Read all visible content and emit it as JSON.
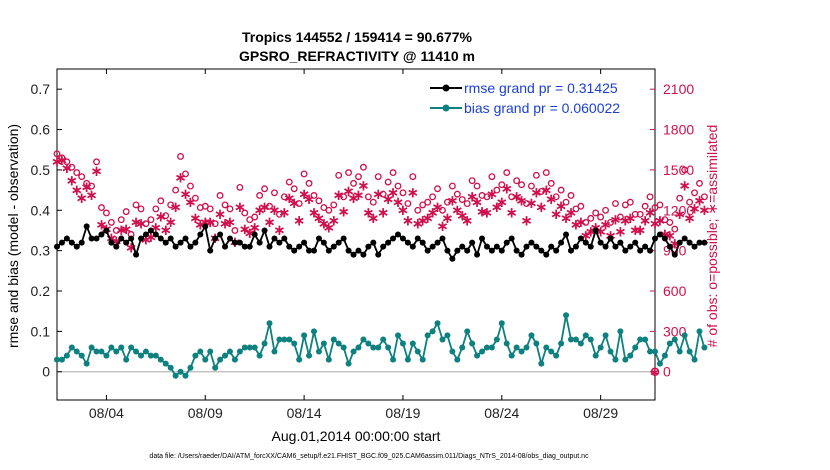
{
  "chart_data": {
    "type": "line",
    "title": "Tropics 144552 / 159414 = 90.677%",
    "subtitle": "GPSRO_REFRACTIVITY @ 11410 m",
    "xlabel": "Aug.01,2014 00:00:00 start",
    "ylabel": "rmse and bias (model - observation)",
    "y2label": "# of obs: o=possible; ∗=assimilated",
    "x_tick_labels": [
      "08/04",
      "08/09",
      "08/14",
      "08/19",
      "08/24",
      "08/29"
    ],
    "x_tick_days": [
      4,
      9,
      14,
      19,
      24,
      29
    ],
    "xlim": [
      1.5,
      31.75
    ],
    "ylim": [
      -0.07,
      0.75
    ],
    "y_ticks": [
      0,
      0.1,
      0.2,
      0.3,
      0.4,
      0.5,
      0.6,
      0.7
    ],
    "y_tick_labels": [
      "0",
      "0.1",
      "0.2",
      "0.3",
      "0.4",
      "0.5",
      "0.6",
      "0.7"
    ],
    "y2lim": [
      -210,
      2250
    ],
    "y2_ticks": [
      0,
      300,
      600,
      900,
      1200,
      1500,
      1800,
      2100
    ],
    "y2_tick_labels": [
      "0",
      "300",
      "600",
      "900",
      "1200",
      "1500",
      "1800",
      "2100"
    ],
    "x_start": 1.5,
    "x_step": 0.25,
    "series": [
      {
        "name": "rmse",
        "legend": "rmse grand pr = 0.31425",
        "color": "#000000",
        "marker": "circle",
        "values": [
          0.31,
          0.32,
          0.33,
          0.32,
          0.31,
          0.32,
          0.36,
          0.33,
          0.33,
          0.34,
          0.35,
          0.32,
          0.31,
          0.33,
          0.32,
          0.33,
          0.29,
          0.33,
          0.34,
          0.35,
          0.34,
          0.33,
          0.32,
          0.33,
          0.31,
          0.32,
          0.33,
          0.31,
          0.32,
          0.34,
          0.36,
          0.3,
          0.33,
          0.34,
          0.31,
          0.33,
          0.32,
          0.32,
          0.31,
          0.31,
          0.34,
          0.32,
          0.35,
          0.31,
          0.33,
          0.32,
          0.33,
          0.31,
          0.3,
          0.31,
          0.32,
          0.3,
          0.3,
          0.33,
          0.32,
          0.3,
          0.31,
          0.32,
          0.33,
          0.3,
          0.29,
          0.3,
          0.29,
          0.31,
          0.32,
          0.29,
          0.31,
          0.32,
          0.33,
          0.34,
          0.33,
          0.32,
          0.31,
          0.33,
          0.32,
          0.3,
          0.31,
          0.32,
          0.33,
          0.3,
          0.28,
          0.3,
          0.31,
          0.3,
          0.32,
          0.29,
          0.33,
          0.31,
          0.3,
          0.31,
          0.3,
          0.32,
          0.33,
          0.3,
          0.29,
          0.31,
          0.32,
          0.31,
          0.3,
          0.29,
          0.31,
          0.3,
          0.32,
          0.34,
          0.3,
          0.31,
          0.33,
          0.32,
          0.31,
          0.35,
          0.32,
          0.31,
          0.33,
          0.31,
          0.32,
          0.3,
          0.31,
          0.32,
          0.3,
          0.31,
          0.3,
          0.33,
          0.34,
          0.33,
          0.31,
          0.29,
          0.32,
          0.33,
          0.32,
          0.31,
          0.32,
          0.32
        ]
      },
      {
        "name": "bias",
        "legend": "bias grand pr = 0.060022",
        "color": "#0d8080",
        "marker": "circle",
        "values": [
          0.03,
          0.03,
          0.04,
          0.06,
          0.05,
          0.04,
          0.02,
          0.06,
          0.05,
          0.05,
          0.04,
          0.06,
          0.05,
          0.06,
          0.03,
          0.06,
          0.05,
          0.04,
          0.05,
          0.04,
          0.04,
          0.03,
          0.02,
          0.01,
          -0.01,
          0.0,
          -0.01,
          0.01,
          0.04,
          0.05,
          0.03,
          0.05,
          0.01,
          0.03,
          0.04,
          0.05,
          0.03,
          0.05,
          0.06,
          0.06,
          0.06,
          0.04,
          0.07,
          0.12,
          0.05,
          0.08,
          0.08,
          0.08,
          0.07,
          0.03,
          0.09,
          0.04,
          0.1,
          0.05,
          0.07,
          0.03,
          0.08,
          0.07,
          0.06,
          0.02,
          0.05,
          0.06,
          0.08,
          0.07,
          0.06,
          0.06,
          0.08,
          0.06,
          0.03,
          0.09,
          0.07,
          0.03,
          0.07,
          0.05,
          0.03,
          0.09,
          0.1,
          0.12,
          0.08,
          0.09,
          0.05,
          0.03,
          0.06,
          0.1,
          0.07,
          0.04,
          0.05,
          0.06,
          0.06,
          0.08,
          0.12,
          0.07,
          0.04,
          0.06,
          0.05,
          0.06,
          0.09,
          0.07,
          0.02,
          0.06,
          0.05,
          0.04,
          0.07,
          0.14,
          0.08,
          0.08,
          0.07,
          0.09,
          0.08,
          0.04,
          0.06,
          0.09,
          0.05,
          0.03,
          0.1,
          0.03,
          0.04,
          0.06,
          0.08,
          0.08,
          0.05,
          0.05,
          0.02,
          0.04,
          0.07,
          0.08,
          0.05,
          0.09,
          0.05,
          0.03,
          0.1,
          0.06
        ]
      },
      {
        "name": "obs_possible",
        "color": "#d0104c",
        "marker": "o",
        "axis": "right",
        "values": [
          1620,
          1590,
          1560,
          1520,
          1480,
          1450,
          1400,
          1380,
          1560,
          1220,
          1180,
          1110,
          1050,
          1130,
          1190,
          1020,
          1240,
          1210,
          1100,
          1130,
          1210,
          1270,
          1160,
          1240,
          1350,
          1600,
          1470,
          1380,
          1290,
          1220,
          1230,
          1210,
          1100,
          1310,
          1240,
          1210,
          1050,
          1370,
          1180,
          1130,
          1150,
          1310,
          1360,
          1230,
          1330,
          1170,
          1300,
          1410,
          1360,
          1250,
          1470,
          1400,
          1310,
          1270,
          1220,
          1200,
          1240,
          1460,
          1300,
          1480,
          1400,
          1450,
          1520,
          1300,
          1260,
          1450,
          1320,
          1410,
          1480,
          1380,
          1330,
          1250,
          1450,
          1200,
          1240,
          1260,
          1300,
          1360,
          1200,
          1260,
          1380,
          1320,
          1280,
          1250,
          1420,
          1380,
          1310,
          1300,
          1450,
          1350,
          1390,
          1480,
          1300,
          1420,
          1390,
          1250,
          1380,
          1460,
          1340,
          1480,
          1400,
          1300,
          1350,
          1260,
          1310,
          1210,
          1230,
          1110,
          1140,
          1180,
          1150,
          1200,
          1110,
          1250,
          1150,
          1240,
          1260,
          1170,
          1170,
          1230,
          1300,
          1220,
          1240,
          1130,
          1110,
          1060,
          1290,
          1500,
          1260,
          1330,
          1400,
          1300
        ]
      },
      {
        "name": "obs_assimilated",
        "color": "#d0104c",
        "marker": "*",
        "axis": "right",
        "values": [
          1570,
          1580,
          1520,
          1430,
          1360,
          1300,
          1380,
          1320,
          1500,
          1100,
          1070,
          1000,
          980,
          1060,
          1070,
          930,
          1120,
          1110,
          990,
          1010,
          1080,
          1160,
          1060,
          1120,
          1230,
          1450,
          1330,
          1270,
          1150,
          1100,
          1120,
          1120,
          1000,
          1180,
          1110,
          1120,
          970,
          1230,
          1070,
          1040,
          1080,
          1210,
          1230,
          1120,
          1210,
          1060,
          1190,
          1300,
          1260,
          1130,
          1330,
          1290,
          1190,
          1150,
          1110,
          1080,
          1130,
          1320,
          1200,
          1350,
          1300,
          1320,
          1390,
          1190,
          1150,
          1330,
          1190,
          1290,
          1340,
          1270,
          1210,
          1130,
          1340,
          1110,
          1130,
          1150,
          1190,
          1230,
          1090,
          1150,
          1280,
          1210,
          1170,
          1130,
          1310,
          1270,
          1200,
          1190,
          1330,
          1230,
          1270,
          1370,
          1190,
          1310,
          1280,
          1130,
          1260,
          1340,
          1230,
          1360,
          1290,
          1180,
          1240,
          1150,
          1190,
          1100,
          1120,
          1020,
          1050,
          1080,
          1050,
          1100,
          1020,
          1140,
          1050,
          1130,
          1150,
          1060,
          1060,
          1130,
          1190,
          1110,
          1130,
          1030,
          1020,
          960,
          1180,
          1390,
          1150,
          1220,
          1280,
          1210
        ]
      }
    ]
  },
  "footer": "data file: /Users/raeder/DAI/ATM_forcXX/CAM6_setup/f.e21.FHIST_BGC.f09_025.CAM6assim.011/Diags_NTrS_2014-08/obs_diag_output.nc"
}
